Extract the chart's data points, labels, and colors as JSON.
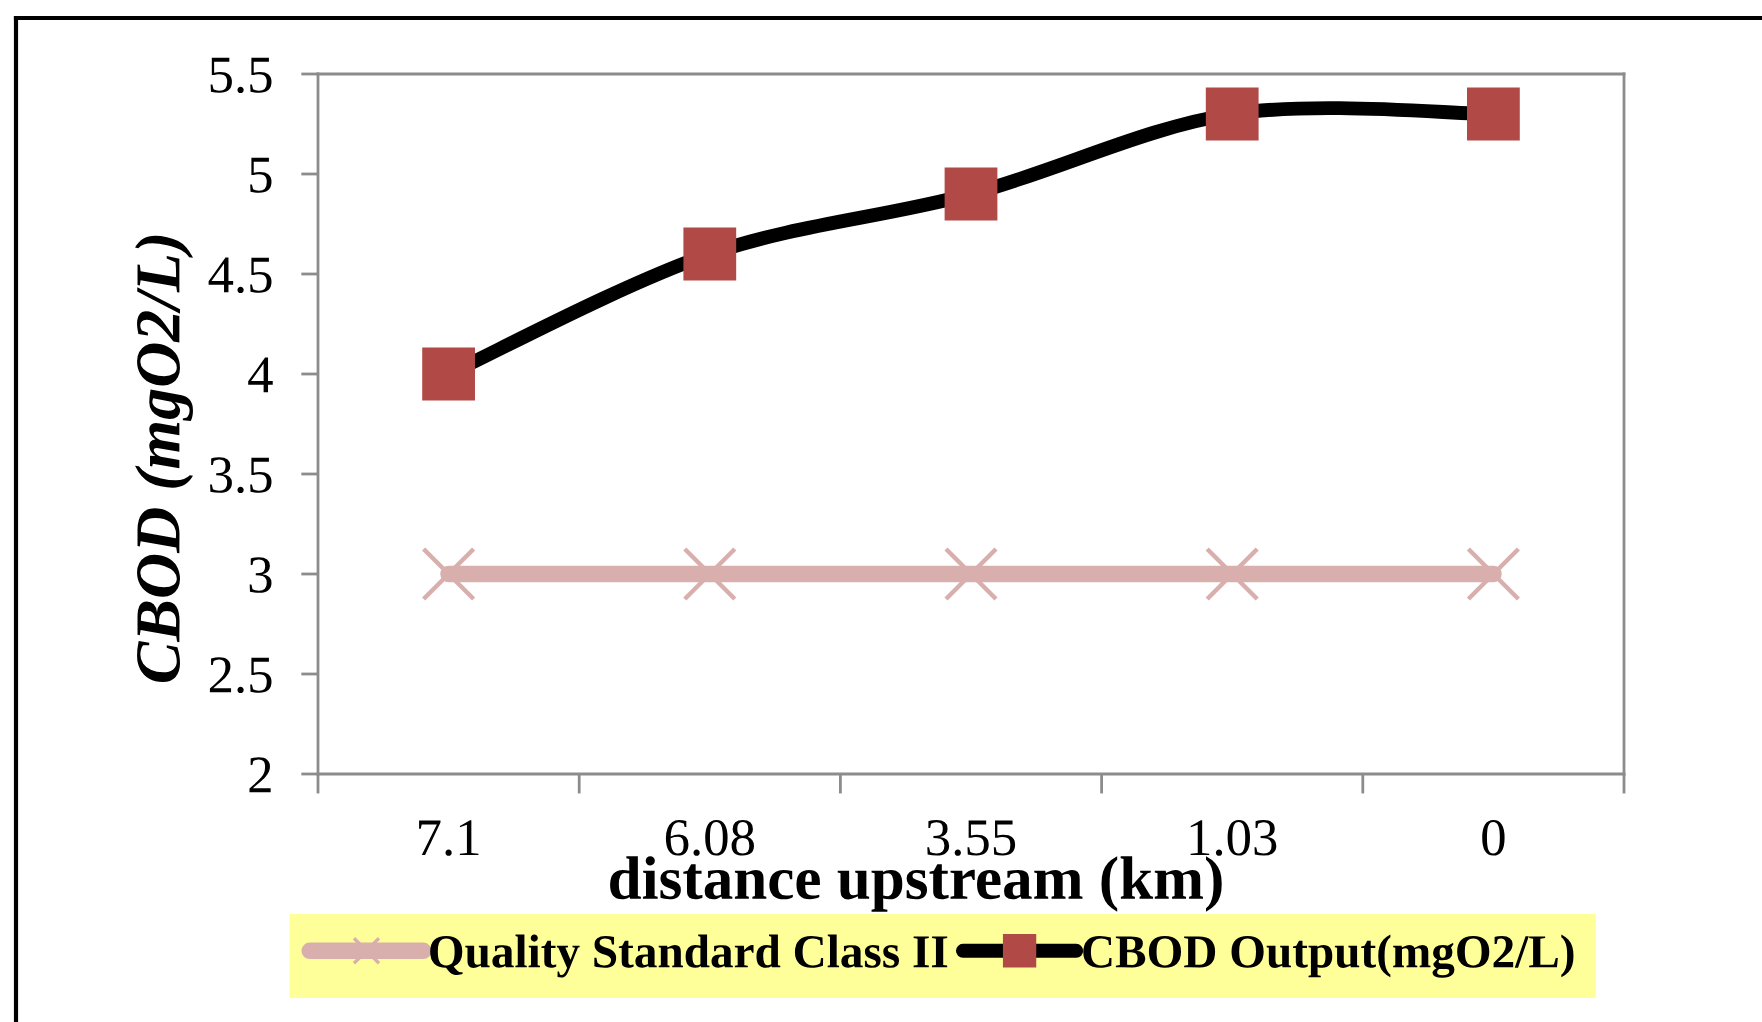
{
  "chart_data": {
    "type": "line",
    "xlabel": "distance upstream (km)",
    "ylabel": "CBOD (mgO2/L)",
    "categories": [
      "7.1",
      "6.08",
      "3.55",
      "1.03",
      "0"
    ],
    "ylim": [
      2,
      5.5
    ],
    "yticks": [
      2,
      2.5,
      3,
      3.5,
      4,
      4.5,
      5,
      5.5
    ],
    "grid": false,
    "legend": "bottom",
    "series": [
      {
        "name": "Quality Standard Class II",
        "color": "#d9afae",
        "marker": "cross",
        "values": [
          3,
          3,
          3,
          3,
          3
        ]
      },
      {
        "name": "CBOD Output(mgO2/L)",
        "color": "#000000",
        "colors": [
          "#b14a47",
          "#b14a47",
          "#b14a47",
          "#b14a47",
          "#b14a47"
        ],
        "marker": "square",
        "values": [
          4,
          4.6,
          4.9,
          5.3,
          5.3
        ]
      }
    ]
  }
}
